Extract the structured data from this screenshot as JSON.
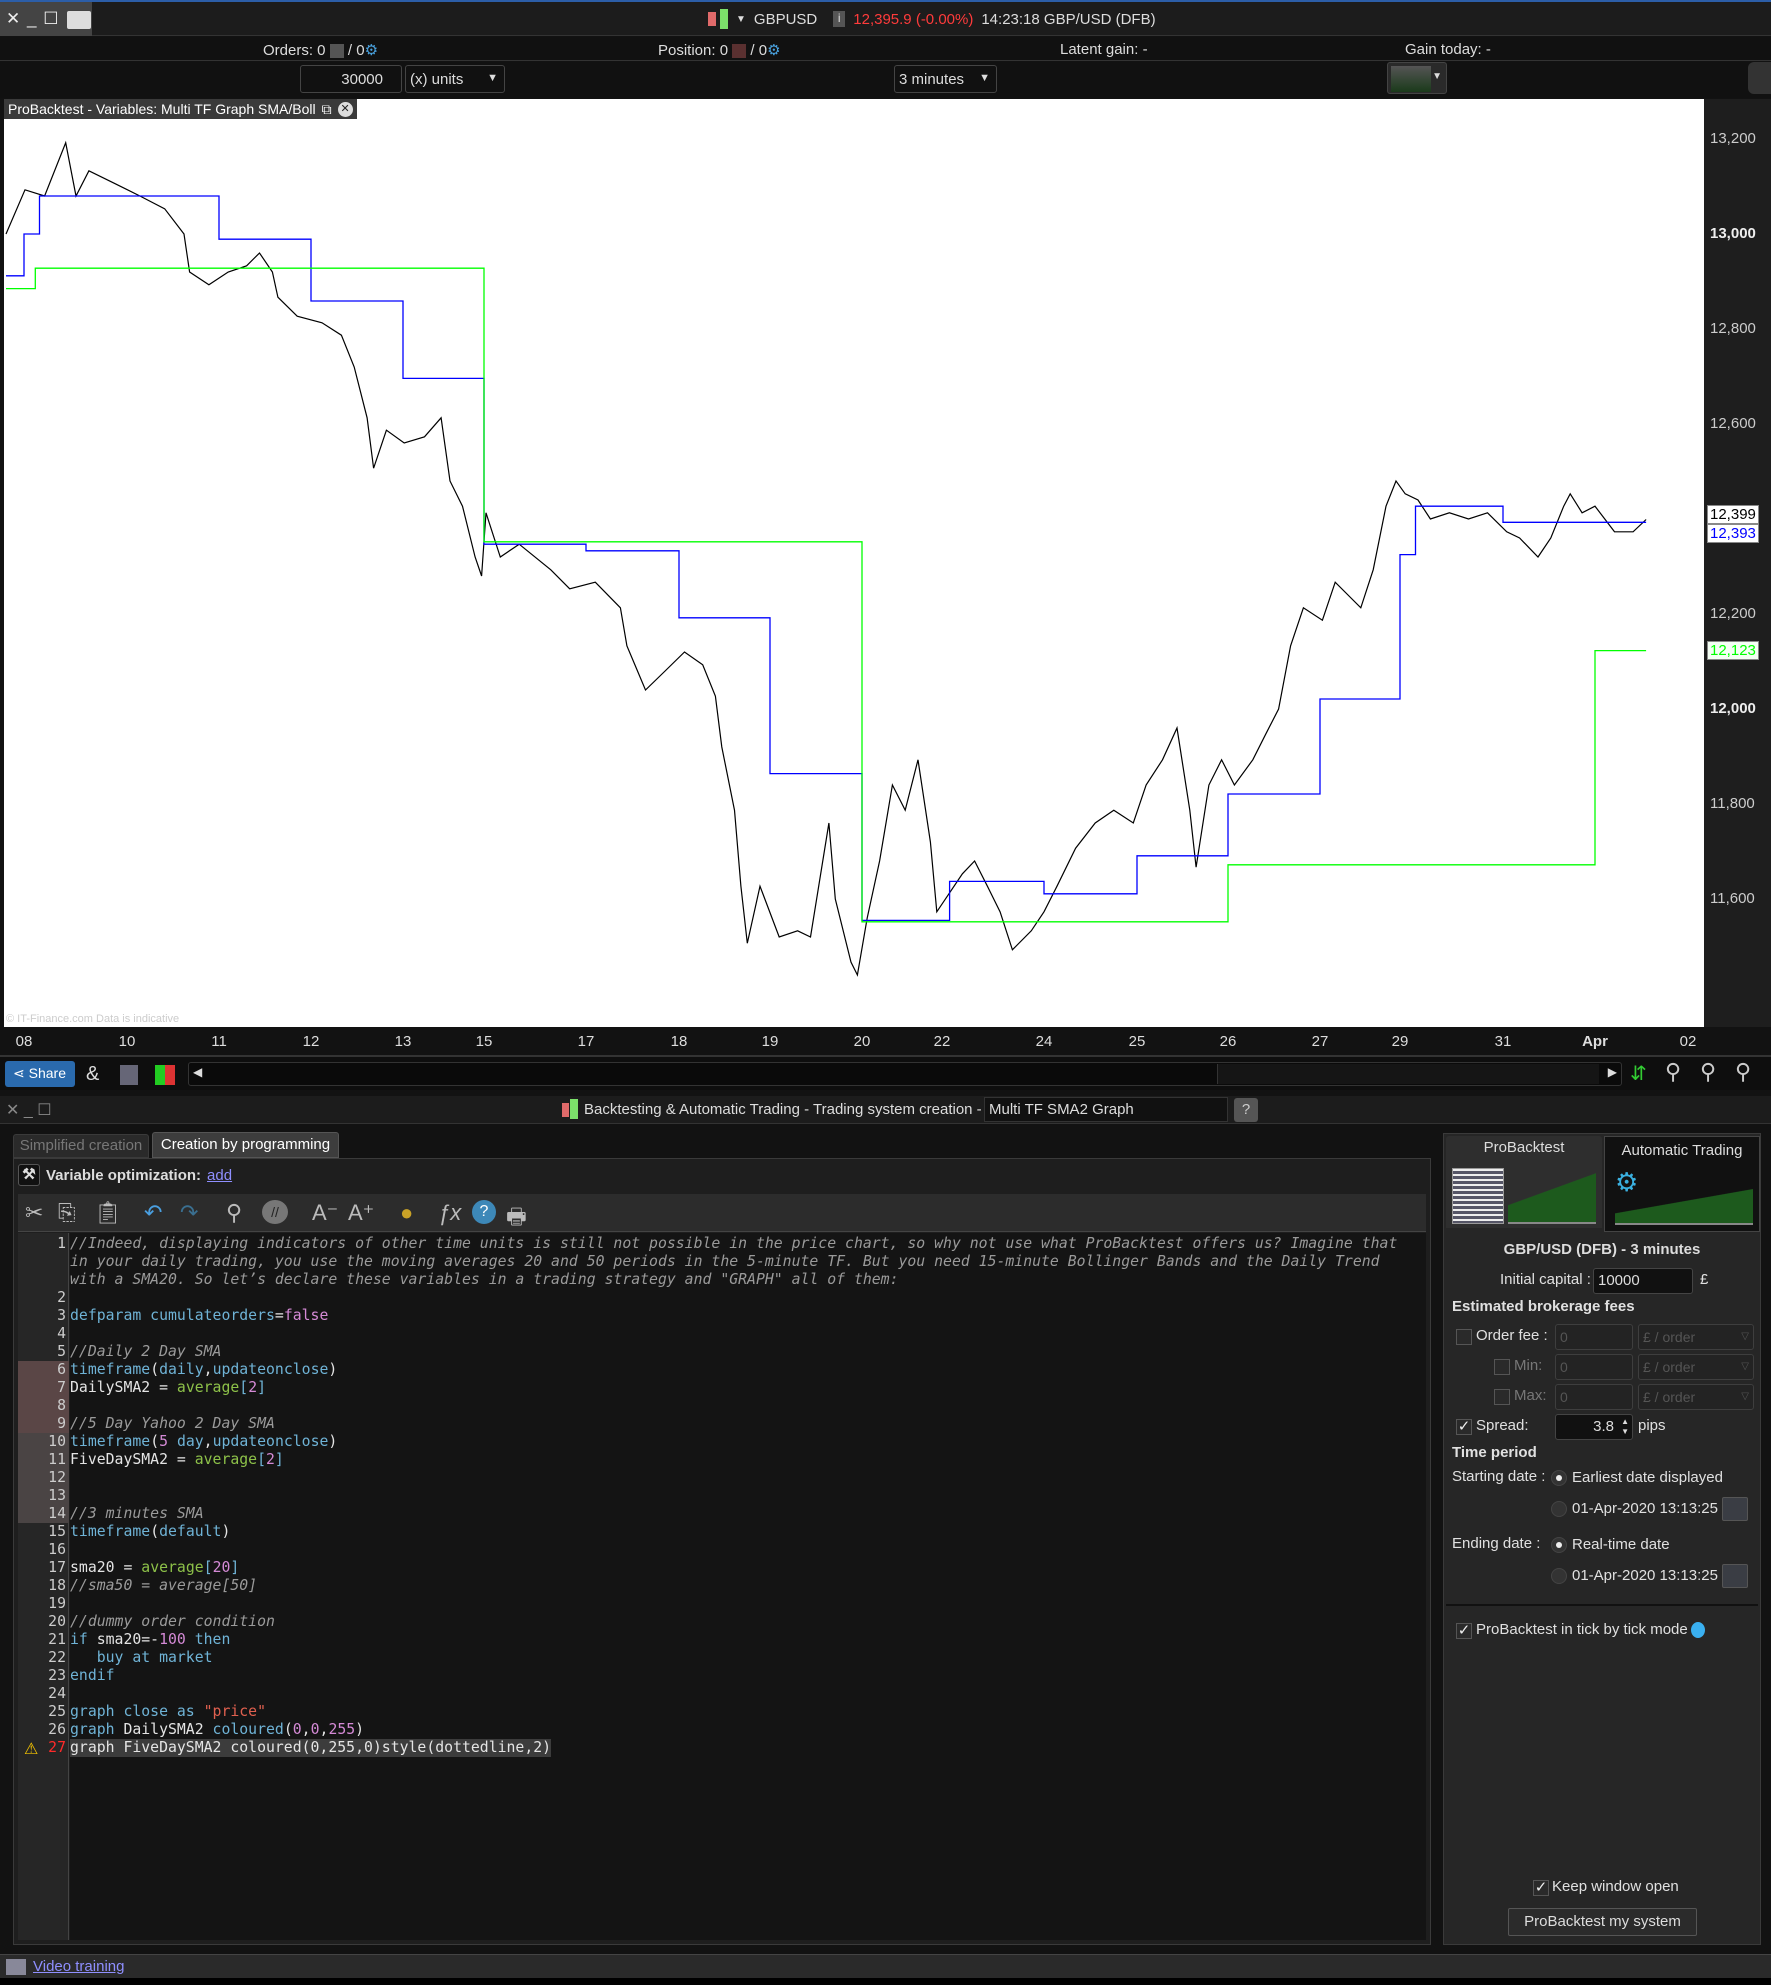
{
  "topbar": {
    "symbol": "GBPUSD",
    "price_change": "12,395.9 (-0.00%)",
    "time_instrument": "14:23:18 GBP/USD (DFB)",
    "price_change_color": "#ff3b3b"
  },
  "status": {
    "orders_label": "Orders: 0",
    "orders_count": "/ 0",
    "position_label": "Position: 0",
    "position_count": "/ 0",
    "latent_gain": "Latent gain: -",
    "gain_today": "Gain today: -"
  },
  "controls": {
    "quantity": "30000",
    "units": "(x) units",
    "timeframe": "3 minutes"
  },
  "chart_tab": {
    "title": "ProBacktest - Variables: Multi TF Graph SMA/Boll"
  },
  "watermark": "© IT-Finance.com  Data is indicative",
  "chart_data": {
    "type": "line",
    "x_unit": "day of month (March 2020; 32 = Apr 1, 33 = Apr 2)",
    "x_ticks": [
      {
        "day": 8,
        "label": "08"
      },
      {
        "day": 10,
        "label": "10"
      },
      {
        "day": 11,
        "label": "11"
      },
      {
        "day": 12,
        "label": "12"
      },
      {
        "day": 13,
        "label": "13"
      },
      {
        "day": 15,
        "label": "15"
      },
      {
        "day": 17,
        "label": "17"
      },
      {
        "day": 18,
        "label": "18"
      },
      {
        "day": 19,
        "label": "19"
      },
      {
        "day": 20,
        "label": "20"
      },
      {
        "day": 22,
        "label": "22"
      },
      {
        "day": 24,
        "label": "24"
      },
      {
        "day": 25,
        "label": "25"
      },
      {
        "day": 26,
        "label": "26"
      },
      {
        "day": 27,
        "label": "27"
      },
      {
        "day": 29,
        "label": "29"
      },
      {
        "day": 31,
        "label": "31"
      },
      {
        "day": 32,
        "label": "Apr"
      },
      {
        "day": 33,
        "label": "02"
      }
    ],
    "y_ticks": [
      {
        "value": 13200,
        "label": "13,200",
        "bold": false
      },
      {
        "value": 13000,
        "label": "13,000",
        "bold": true
      },
      {
        "value": 12800,
        "label": "12,800",
        "bold": false
      },
      {
        "value": 12600,
        "label": "12,600",
        "bold": false
      },
      {
        "value": 12200,
        "label": "12,200",
        "bold": false
      },
      {
        "value": 12000,
        "label": "12,000",
        "bold": true
      },
      {
        "value": 11800,
        "label": "11,800",
        "bold": false
      },
      {
        "value": 11600,
        "label": "11,600",
        "bold": false
      }
    ],
    "ylim": [
      11360,
      13280
    ],
    "grid": false,
    "series": [
      {
        "key": "price",
        "color": "#000000",
        "step": false,
        "points": [
          [
            7.65,
            13000
          ],
          [
            8.02,
            13093
          ],
          [
            8.4,
            13080
          ],
          [
            8.81,
            13192
          ],
          [
            9.01,
            13080
          ],
          [
            9.26,
            13133
          ],
          [
            9.75,
            13107
          ],
          [
            10.14,
            13080
          ],
          [
            10.41,
            13053
          ],
          [
            10.62,
            13000
          ],
          [
            10.68,
            12920
          ],
          [
            10.89,
            12893
          ],
          [
            11.1,
            12920
          ],
          [
            11.3,
            12933
          ],
          [
            11.44,
            12960
          ],
          [
            11.58,
            12920
          ],
          [
            11.64,
            12867
          ],
          [
            11.85,
            12827
          ],
          [
            12.12,
            12813
          ],
          [
            12.33,
            12787
          ],
          [
            12.47,
            12720
          ],
          [
            12.61,
            12613
          ],
          [
            12.68,
            12507
          ],
          [
            12.82,
            12587
          ],
          [
            13.03,
            12560
          ],
          [
            13.53,
            12573
          ],
          [
            13.94,
            12613
          ],
          [
            14.16,
            12480
          ],
          [
            14.47,
            12427
          ],
          [
            14.78,
            12320
          ],
          [
            14.94,
            12280
          ],
          [
            15.04,
            12413
          ],
          [
            15.32,
            12320
          ],
          [
            15.69,
            12347
          ],
          [
            16.31,
            12293
          ],
          [
            16.68,
            12253
          ],
          [
            17.1,
            12267
          ],
          [
            17.37,
            12213
          ],
          [
            17.44,
            12133
          ],
          [
            17.64,
            12040
          ],
          [
            17.85,
            12080
          ],
          [
            18.06,
            12120
          ],
          [
            18.26,
            12093
          ],
          [
            18.4,
            12027
          ],
          [
            18.47,
            11920
          ],
          [
            18.61,
            11787
          ],
          [
            18.68,
            11627
          ],
          [
            18.75,
            11507
          ],
          [
            18.89,
            11627
          ],
          [
            19.1,
            11520
          ],
          [
            19.3,
            11533
          ],
          [
            19.44,
            11520
          ],
          [
            19.64,
            11760
          ],
          [
            19.71,
            11600
          ],
          [
            19.88,
            11467
          ],
          [
            19.95,
            11440
          ],
          [
            20.13,
            11560
          ],
          [
            20.44,
            11680
          ],
          [
            20.76,
            11840
          ],
          [
            21.08,
            11787
          ],
          [
            21.4,
            11893
          ],
          [
            21.71,
            11720
          ],
          [
            21.87,
            11573
          ],
          [
            22.15,
            11613
          ],
          [
            22.4,
            11653
          ],
          [
            22.64,
            11680
          ],
          [
            22.89,
            11627
          ],
          [
            23.14,
            11573
          ],
          [
            23.38,
            11493
          ],
          [
            23.75,
            11533
          ],
          [
            24.0,
            11573
          ],
          [
            24.14,
            11627
          ],
          [
            24.34,
            11707
          ],
          [
            24.55,
            11760
          ],
          [
            24.75,
            11787
          ],
          [
            24.96,
            11760
          ],
          [
            25.1,
            11840
          ],
          [
            25.28,
            11893
          ],
          [
            25.44,
            11960
          ],
          [
            25.58,
            11787
          ],
          [
            25.65,
            11667
          ],
          [
            25.79,
            11840
          ],
          [
            25.93,
            11893
          ],
          [
            26.07,
            11840
          ],
          [
            26.27,
            11893
          ],
          [
            26.41,
            11947
          ],
          [
            26.55,
            12000
          ],
          [
            26.68,
            12133
          ],
          [
            26.82,
            12213
          ],
          [
            27.06,
            12187
          ],
          [
            27.38,
            12267
          ],
          [
            27.7,
            12240
          ],
          [
            28.02,
            12213
          ],
          [
            28.33,
            12293
          ],
          [
            28.65,
            12427
          ],
          [
            28.9,
            12480
          ],
          [
            29.1,
            12453
          ],
          [
            29.35,
            12440
          ],
          [
            29.59,
            12400
          ],
          [
            29.96,
            12413
          ],
          [
            30.33,
            12400
          ],
          [
            30.7,
            12413
          ],
          [
            31.04,
            12373
          ],
          [
            31.18,
            12360
          ],
          [
            31.38,
            12320
          ],
          [
            31.52,
            12360
          ],
          [
            31.66,
            12427
          ],
          [
            31.73,
            12453
          ],
          [
            31.86,
            12413
          ],
          [
            32.0,
            12427
          ],
          [
            32.21,
            12373
          ],
          [
            32.41,
            12373
          ],
          [
            32.55,
            12399
          ]
        ]
      },
      {
        "key": "DailySMA2",
        "color": "#0000ff",
        "step": true,
        "points": [
          [
            7.65,
            12912
          ],
          [
            8.0,
            13000
          ],
          [
            8.3,
            13080
          ],
          [
            11.0,
            12989
          ],
          [
            12.0,
            12859
          ],
          [
            13.0,
            12696
          ],
          [
            15.0,
            12347
          ],
          [
            17.0,
            12333
          ],
          [
            18.0,
            12192
          ],
          [
            19.0,
            11864
          ],
          [
            20.0,
            11555
          ],
          [
            22.15,
            11637
          ],
          [
            24.0,
            11611
          ],
          [
            25.0,
            11691
          ],
          [
            26.0,
            11821
          ],
          [
            27.0,
            12021
          ],
          [
            29.0,
            12325
          ],
          [
            29.3,
            12427
          ],
          [
            31.0,
            12393
          ],
          [
            32.55,
            12393
          ]
        ]
      },
      {
        "key": "FiveDaySMA2",
        "color": "#00ff00",
        "step": true,
        "points": [
          [
            7.65,
            12885
          ],
          [
            8.22,
            12928
          ],
          [
            15.0,
            12352
          ],
          [
            20.0,
            11552
          ],
          [
            26.0,
            11672
          ],
          [
            32.0,
            12123
          ],
          [
            32.55,
            12123
          ]
        ]
      }
    ],
    "last_value_tags": [
      {
        "value": 12399,
        "label": "12,399",
        "color": "#000000"
      },
      {
        "value": 12393,
        "label": "12,393",
        "color": "#0000ff"
      },
      {
        "value": 12123,
        "label": "12,123",
        "color": "#00ff00"
      }
    ]
  },
  "chart_toolbar": {
    "share": "Share"
  },
  "backtest_window": {
    "title": "Backtesting & Automatic Trading - Trading system creation -",
    "system_name": "Multi TF SMA2 Graph",
    "tabs": [
      {
        "label": "Simplified creation",
        "active": false
      },
      {
        "label": "Creation by programming",
        "active": true
      }
    ],
    "var_opt_label": "Variable optimization:",
    "var_opt_link": "add"
  },
  "code": [
    {
      "n": "1",
      "tokens": [
        {
          "c": "c",
          "t": "//Indeed, displaying indicators of other time units is still not possible in the price chart, so why not use what ProBacktest offers us? Imagine that"
        }
      ]
    },
    {
      "n": "",
      "tokens": [
        {
          "c": "c",
          "t": "in your daily trading, you use the moving averages 20 and 50 periods in the 5-minute TF. But you need 15-minute Bollinger Bands and the Daily Trend"
        }
      ]
    },
    {
      "n": "",
      "tokens": [
        {
          "c": "c",
          "t": "with a SMA20. So let’s declare these variables in a trading strategy and \"GRAPH\" all of them:"
        }
      ]
    },
    {
      "n": "2",
      "tokens": []
    },
    {
      "n": "3",
      "tokens": [
        {
          "c": "k",
          "t": "defparam cumulateorders"
        },
        {
          "c": "p",
          "t": "="
        },
        {
          "c": "n",
          "t": "false"
        }
      ]
    },
    {
      "n": "4",
      "tokens": []
    },
    {
      "n": "5",
      "tokens": [
        {
          "c": "c",
          "t": "//Daily 2 Day SMA"
        }
      ]
    },
    {
      "n": "6",
      "hl": "a",
      "tokens": [
        {
          "c": "k",
          "t": "timeframe"
        },
        {
          "c": "p",
          "t": "("
        },
        {
          "c": "k",
          "t": "daily"
        },
        {
          "c": "p",
          "t": ","
        },
        {
          "c": "k",
          "t": "updateonclose"
        },
        {
          "c": "p",
          "t": ")"
        }
      ]
    },
    {
      "n": "7",
      "hl": "a",
      "tokens": [
        {
          "c": "p",
          "t": "DailySMA2 = "
        },
        {
          "c": "f",
          "t": "average"
        },
        {
          "c": "k",
          "t": "["
        },
        {
          "c": "n",
          "t": "2"
        },
        {
          "c": "k",
          "t": "]"
        }
      ]
    },
    {
      "n": "8",
      "hl": "a",
      "tokens": []
    },
    {
      "n": "9",
      "hl": "a",
      "tokens": [
        {
          "c": "c",
          "t": "//5 Day Yahoo 2 Day SMA"
        }
      ]
    },
    {
      "n": "10",
      "hl": "b",
      "tokens": [
        {
          "c": "k",
          "t": "timeframe"
        },
        {
          "c": "p",
          "t": "("
        },
        {
          "c": "n",
          "t": "5"
        },
        {
          "c": "k",
          "t": " day"
        },
        {
          "c": "p",
          "t": ","
        },
        {
          "c": "k",
          "t": "updateonclose"
        },
        {
          "c": "p",
          "t": ")"
        }
      ]
    },
    {
      "n": "11",
      "hl": "b",
      "tokens": [
        {
          "c": "p",
          "t": "FiveDaySMA2 = "
        },
        {
          "c": "f",
          "t": "average"
        },
        {
          "c": "k",
          "t": "["
        },
        {
          "c": "n",
          "t": "2"
        },
        {
          "c": "k",
          "t": "]"
        }
      ]
    },
    {
      "n": "12",
      "hl": "b",
      "tokens": []
    },
    {
      "n": "13",
      "hl": "b",
      "tokens": []
    },
    {
      "n": "14",
      "hl": "b",
      "tokens": [
        {
          "c": "c",
          "t": "//3 minutes SMA"
        }
      ]
    },
    {
      "n": "15",
      "tokens": [
        {
          "c": "k",
          "t": "timeframe"
        },
        {
          "c": "p",
          "t": "("
        },
        {
          "c": "k",
          "t": "default"
        },
        {
          "c": "p",
          "t": ")"
        }
      ]
    },
    {
      "n": "16",
      "tokens": []
    },
    {
      "n": "17",
      "tokens": [
        {
          "c": "p",
          "t": "sma20 = "
        },
        {
          "c": "f",
          "t": "average"
        },
        {
          "c": "k",
          "t": "["
        },
        {
          "c": "n",
          "t": "20"
        },
        {
          "c": "k",
          "t": "]"
        }
      ]
    },
    {
      "n": "18",
      "tokens": [
        {
          "c": "c",
          "t": "//sma50 = average[50]"
        }
      ]
    },
    {
      "n": "19",
      "tokens": []
    },
    {
      "n": "20",
      "tokens": [
        {
          "c": "c",
          "t": "//dummy order condition"
        }
      ]
    },
    {
      "n": "21",
      "tokens": [
        {
          "c": "k",
          "t": "if "
        },
        {
          "c": "p",
          "t": "sma20=-"
        },
        {
          "c": "n",
          "t": "100"
        },
        {
          "c": "k",
          "t": " then"
        }
      ]
    },
    {
      "n": "22",
      "tokens": [
        {
          "c": "k",
          "t": "   buy at market"
        }
      ]
    },
    {
      "n": "23",
      "tokens": [
        {
          "c": "k",
          "t": "endif"
        }
      ]
    },
    {
      "n": "24",
      "tokens": []
    },
    {
      "n": "25",
      "tokens": [
        {
          "c": "k",
          "t": "graph close as "
        },
        {
          "c": "s",
          "t": "\"price\""
        }
      ]
    },
    {
      "n": "26",
      "tokens": [
        {
          "c": "k",
          "t": "graph "
        },
        {
          "c": "p",
          "t": "DailySMA2 "
        },
        {
          "c": "k",
          "t": "coloured"
        },
        {
          "c": "p",
          "t": "("
        },
        {
          "c": "n",
          "t": "0"
        },
        {
          "c": "p",
          "t": ","
        },
        {
          "c": "n",
          "t": "0"
        },
        {
          "c": "p",
          "t": ","
        },
        {
          "c": "n",
          "t": "255"
        },
        {
          "c": "p",
          "t": ")"
        }
      ]
    },
    {
      "n": "27",
      "warn": true,
      "tokens": [
        {
          "c": "p",
          "t": "graph FiveDaySMA2 coloured(0,255,0)style(dottedline,2)"
        }
      ]
    }
  ],
  "side_panel": {
    "tab_probacktest": "ProBacktest",
    "tab_auto": "Automatic Trading",
    "heading": "GBP/USD (DFB) - 3 minutes",
    "initial_capital_label": "Initial capital :",
    "initial_capital": "10000",
    "currency": "£",
    "fees_heading": "Estimated brokerage fees",
    "order_fee_label": "Order fee :",
    "min_label": "Min:",
    "max_label": "Max:",
    "fee_value": "0",
    "fee_unit": "£ / order",
    "spread_label": "Spread:",
    "spread": "3.8",
    "spread_unit": "pips",
    "time_period": "Time period",
    "starting_label": "Starting date :",
    "start_opt1": "Earliest date displayed",
    "start_opt2": "01-Apr-2020 13:13:25",
    "ending_label": "Ending date :",
    "end_opt1": "Real-time date",
    "end_opt2": "01-Apr-2020 13:13:25",
    "tick_mode": "ProBacktest in tick by tick mode",
    "keep_open": "Keep window open",
    "run_button": "ProBacktest my system"
  },
  "footer": {
    "video_training": "Video training"
  }
}
